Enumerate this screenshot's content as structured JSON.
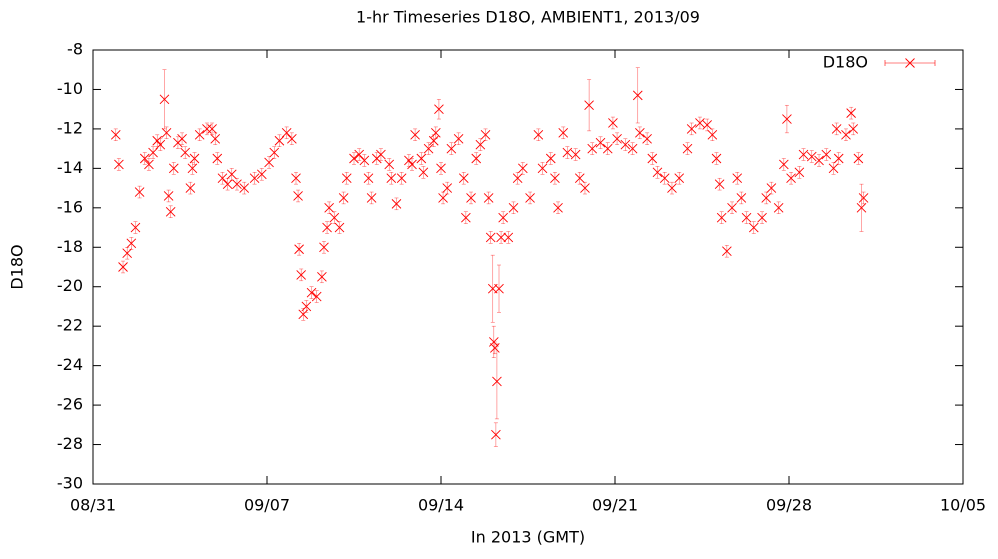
{
  "chart_data": {
    "type": "scatter",
    "title": "1-hr Timeseries D18O, AMBIENT1, 2013/09",
    "xlabel": "In 2013 (GMT)",
    "ylabel": "D18O",
    "legend": "top-right",
    "xlim": [
      "2013-08-31T00:00",
      "2013-10-05T00:00"
    ],
    "xticks": [
      {
        "value": "2013-08-31T00:00",
        "label": "08/31"
      },
      {
        "value": "2013-09-07T00:00",
        "label": "09/07"
      },
      {
        "value": "2013-09-14T00:00",
        "label": "09/14"
      },
      {
        "value": "2013-09-21T00:00",
        "label": "09/21"
      },
      {
        "value": "2013-09-28T00:00",
        "label": "09/28"
      },
      {
        "value": "2013-10-05T00:00",
        "label": "10/05"
      }
    ],
    "ylim": [
      -30,
      -8
    ],
    "yticks": [
      -30,
      -28,
      -26,
      -24,
      -22,
      -20,
      -18,
      -16,
      -14,
      -12,
      -10,
      -8
    ],
    "series": [
      {
        "name": "D18O",
        "color": "#ff0000",
        "x": [
          "2013-08-31T22:00",
          "2013-09-01T01:00",
          "2013-09-01T05:00",
          "2013-09-01T09:00",
          "2013-09-01T13:00",
          "2013-09-01T17:00",
          "2013-09-01T21:00",
          "2013-09-02T02:00",
          "2013-09-02T06:00",
          "2013-09-02T10:00",
          "2013-09-02T14:00",
          "2013-09-02T17:00",
          "2013-09-02T21:00",
          "2013-09-02T23:00",
          "2013-09-03T01:00",
          "2013-09-03T03:00",
          "2013-09-03T06:00",
          "2013-09-03T10:00",
          "2013-09-03T14:00",
          "2013-09-03T17:00",
          "2013-09-03T22:00",
          "2013-09-04T00:00",
          "2013-09-04T02:00",
          "2013-09-04T07:00",
          "2013-09-04T14:00",
          "2013-09-04T19:00",
          "2013-09-04T22:00",
          "2013-09-05T00:00",
          "2013-09-05T05:00",
          "2013-09-05T10:00",
          "2013-09-05T14:00",
          "2013-09-05T19:00",
          "2013-09-06T02:00",
          "2013-09-06T12:00",
          "2013-09-06T19:00",
          "2013-09-07T02:00",
          "2013-09-07T07:00",
          "2013-09-07T12:00",
          "2013-09-07T19:00",
          "2013-09-08T00:00",
          "2013-09-08T04:00",
          "2013-09-08T06:00",
          "2013-09-08T07:00",
          "2013-09-08T09:00",
          "2013-09-08T11:00",
          "2013-09-08T14:00",
          "2013-09-08T19:00",
          "2013-09-09T00:00",
          "2013-09-09T05:00",
          "2013-09-09T07:00",
          "2013-09-09T10:00",
          "2013-09-09T12:00",
          "2013-09-09T17:00",
          "2013-09-09T22:00",
          "2013-09-10T02:00",
          "2013-09-10T05:00",
          "2013-09-10T12:00",
          "2013-09-10T17:00",
          "2013-09-10T22:00",
          "2013-09-11T02:00",
          "2013-09-11T05:00",
          "2013-09-11T10:00",
          "2013-09-11T14:00",
          "2013-09-11T22:00",
          "2013-09-12T00:00",
          "2013-09-12T05:00",
          "2013-09-12T10:00",
          "2013-09-12T17:00",
          "2013-09-12T20:00",
          "2013-09-12T23:00",
          "2013-09-13T05:00",
          "2013-09-13T07:00",
          "2013-09-13T12:00",
          "2013-09-13T17:00",
          "2013-09-13T19:00",
          "2013-09-13T22:00",
          "2013-09-14T00:00",
          "2013-09-14T02:00",
          "2013-09-14T06:00",
          "2013-09-14T10:00",
          "2013-09-14T17:00",
          "2013-09-14T22:00",
          "2013-09-15T00:00",
          "2013-09-15T05:00",
          "2013-09-15T10:00",
          "2013-09-15T14:00",
          "2013-09-15T19:00",
          "2013-09-15T22:00",
          "2013-09-16T00:00",
          "2013-09-16T02:00",
          "2013-09-16T03:00",
          "2013-09-16T04:00",
          "2013-09-16T05:00",
          "2013-09-16T06:00",
          "2013-09-16T08:00",
          "2013-09-16T10:00",
          "2013-09-16T12:00",
          "2013-09-16T17:00",
          "2013-09-16T22:00",
          "2013-09-17T02:00",
          "2013-09-17T07:00",
          "2013-09-17T14:00",
          "2013-09-17T22:00",
          "2013-09-18T02:00",
          "2013-09-18T10:00",
          "2013-09-18T14:00",
          "2013-09-18T17:00",
          "2013-09-18T22:00",
          "2013-09-19T02:00",
          "2013-09-19T10:00",
          "2013-09-19T14:00",
          "2013-09-19T19:00",
          "2013-09-19T23:00",
          "2013-09-20T02:00",
          "2013-09-20T10:00",
          "2013-09-20T17:00",
          "2013-09-20T22:00",
          "2013-09-21T02:00",
          "2013-09-21T10:00",
          "2013-09-21T17:00",
          "2013-09-21T22:00",
          "2013-09-22T00:00",
          "2013-09-22T07:00",
          "2013-09-22T12:00",
          "2013-09-22T17:00",
          "2013-09-23T00:00",
          "2013-09-23T07:00",
          "2013-09-23T14:00",
          "2013-09-23T22:00",
          "2013-09-24T02:00",
          "2013-09-24T10:00",
          "2013-09-24T17:00",
          "2013-09-24T22:00",
          "2013-09-25T02:00",
          "2013-09-25T05:00",
          "2013-09-25T07:00",
          "2013-09-25T12:00",
          "2013-09-25T17:00",
          "2013-09-25T22:00",
          "2013-09-26T02:00",
          "2013-09-26T07:00",
          "2013-09-26T14:00",
          "2013-09-26T22:00",
          "2013-09-27T02:00",
          "2013-09-27T07:00",
          "2013-09-27T14:00",
          "2013-09-27T19:00",
          "2013-09-27T22:00",
          "2013-09-28T02:00",
          "2013-09-28T10:00",
          "2013-09-28T14:00",
          "2013-09-28T22:00",
          "2013-09-29T05:00",
          "2013-09-29T12:00",
          "2013-09-29T19:00",
          "2013-09-29T22:00",
          "2013-09-30T00:00",
          "2013-09-30T07:00",
          "2013-09-30T12:00",
          "2013-09-30T14:00",
          "2013-09-30T19:00",
          "2013-09-30T22:00",
          "2013-10-01T00:00"
        ],
        "values": [
          -12.3,
          -13.8,
          -19.0,
          -18.3,
          -17.8,
          -17.0,
          -15.2,
          -13.5,
          -13.8,
          -13.2,
          -12.6,
          -12.8,
          -10.5,
          -12.2,
          -15.4,
          -16.2,
          -14.0,
          -12.7,
          -12.5,
          -13.2,
          -15.0,
          -14.0,
          -13.5,
          -12.3,
          -12.0,
          -12.0,
          -12.5,
          -13.5,
          -14.5,
          -14.8,
          -14.3,
          -14.8,
          -15.0,
          -14.5,
          -14.3,
          -13.7,
          -13.2,
          -12.6,
          -12.2,
          -12.5,
          -14.5,
          -15.4,
          -18.1,
          -19.4,
          -21.4,
          -21.0,
          -20.3,
          -20.5,
          -19.5,
          -18.0,
          -17.0,
          -16.0,
          -16.5,
          -17.0,
          -15.5,
          -14.5,
          -13.5,
          -13.3,
          -13.6,
          -14.5,
          -15.5,
          -13.5,
          -13.3,
          -13.8,
          -14.5,
          -15.8,
          -14.5,
          -13.6,
          -13.8,
          -12.3,
          -13.5,
          -14.2,
          -13.0,
          -12.6,
          -12.2,
          -11.0,
          -14.0,
          -15.5,
          -15.0,
          -13.0,
          -12.5,
          -14.5,
          -16.5,
          -15.5,
          -13.5,
          -12.8,
          -12.3,
          -15.5,
          -17.5,
          -20.1,
          -22.8,
          -23.1,
          -27.5,
          -24.8,
          -20.1,
          -17.5,
          -16.5,
          -17.5,
          -16.0,
          -14.5,
          -14.0,
          -15.5,
          -12.3,
          -14.0,
          -13.5,
          -14.5,
          -16.0,
          -12.2,
          -13.2,
          -13.3,
          -14.5,
          -15.0,
          -10.8,
          -13.0,
          -12.7,
          -13.0,
          -11.7,
          -12.5,
          -12.8,
          -13.0,
          -10.3,
          -12.2,
          -12.5,
          -13.5,
          -14.2,
          -14.5,
          -15.0,
          -14.5,
          -13.0,
          -12.0,
          -11.7,
          -11.8,
          -12.3,
          -13.5,
          -14.8,
          -16.5,
          -18.2,
          -16.0,
          -14.5,
          -15.5,
          -16.5,
          -17.0,
          -16.5,
          -15.5,
          -15.0,
          -16.0,
          -13.8,
          -11.5,
          -14.5,
          -14.2,
          -13.3,
          -13.4,
          -13.6,
          -13.3,
          -14.0,
          -12.0,
          -13.5,
          -12.3,
          -11.2,
          -12.0,
          -13.5,
          -16.0,
          -15.5
        ],
        "errors": [
          0.3,
          0.3,
          0.3,
          0.3,
          0.3,
          0.3,
          0.3,
          0.3,
          0.3,
          0.3,
          0.3,
          0.3,
          1.5,
          0.3,
          0.3,
          0.3,
          0.3,
          0.3,
          0.3,
          0.3,
          0.3,
          0.3,
          0.3,
          0.3,
          0.3,
          0.3,
          0.3,
          0.3,
          0.3,
          0.3,
          0.3,
          0.3,
          0.3,
          0.3,
          0.3,
          0.3,
          0.3,
          0.3,
          0.3,
          0.3,
          0.3,
          0.3,
          0.3,
          0.3,
          0.3,
          0.3,
          0.3,
          0.3,
          0.3,
          0.3,
          0.3,
          0.3,
          0.3,
          0.3,
          0.3,
          0.3,
          0.3,
          0.3,
          0.3,
          0.3,
          0.3,
          0.3,
          0.3,
          0.3,
          0.3,
          0.3,
          0.3,
          0.3,
          0.3,
          0.3,
          0.3,
          0.3,
          0.3,
          0.3,
          0.3,
          0.5,
          0.3,
          0.3,
          0.3,
          0.3,
          0.3,
          0.3,
          0.3,
          0.3,
          0.3,
          0.3,
          0.3,
          0.3,
          0.3,
          1.7,
          0.8,
          0.3,
          0.6,
          1.9,
          1.2,
          0.3,
          0.3,
          0.3,
          0.3,
          0.3,
          0.3,
          0.3,
          0.3,
          0.3,
          0.3,
          0.3,
          0.3,
          0.3,
          0.3,
          0.3,
          0.3,
          0.3,
          1.3,
          0.3,
          0.3,
          0.3,
          0.3,
          0.3,
          0.3,
          0.3,
          1.4,
          0.3,
          0.3,
          0.3,
          0.3,
          0.3,
          0.3,
          0.3,
          0.3,
          0.3,
          0.3,
          0.3,
          0.3,
          0.3,
          0.3,
          0.3,
          0.3,
          0.3,
          0.3,
          0.3,
          0.3,
          0.3,
          0.3,
          0.3,
          0.3,
          0.3,
          0.3,
          0.7,
          0.3,
          0.3,
          0.3,
          0.3,
          0.3,
          0.3,
          0.3,
          0.3,
          0.3,
          0.3,
          0.3,
          0.3,
          0.3,
          1.2,
          0.3
        ]
      }
    ]
  }
}
